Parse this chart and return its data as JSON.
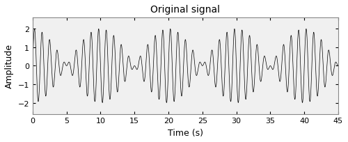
{
  "title": "Original signal",
  "xlabel": "Time (s)",
  "ylabel": "Amplitude",
  "xlim": [
    0,
    45
  ],
  "ylim": [
    -2.6,
    2.6
  ],
  "xticks": [
    0,
    5,
    10,
    15,
    20,
    25,
    30,
    35,
    40,
    45
  ],
  "yticks": [
    -2,
    -1,
    0,
    1,
    2
  ],
  "t_start": 0,
  "t_end": 45,
  "num_points": 15000,
  "f_carrier": 1.0,
  "f_mod": 0.1,
  "amp1": 1.0,
  "amp2": 1.0,
  "line_color": "#000000",
  "line_width": 0.5,
  "background_color": "#f0f0f0",
  "title_fontsize": 10,
  "label_fontsize": 9,
  "tick_fontsize": 8
}
